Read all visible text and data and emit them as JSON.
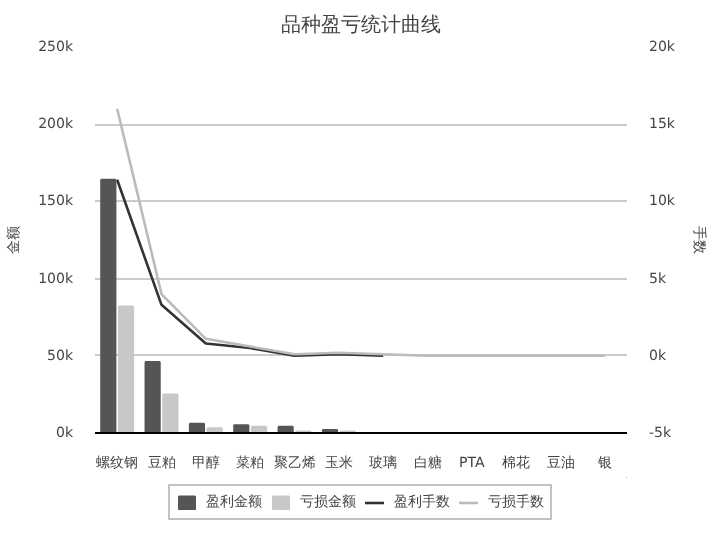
{
  "chart_data": {
    "type": "bar",
    "title": "品种盈亏统计曲线",
    "ylabel": "金额",
    "y2label": "手数",
    "categories": [
      "螺纹钢",
      "豆粕",
      "甲醇",
      "菜粕",
      "聚乙烯",
      "玉米",
      "玻璃",
      "白糖",
      "PTA",
      "棉花",
      "豆油",
      "银"
    ],
    "series": [
      {
        "name": "盈利金额",
        "color": "#555555",
        "values": [
          164000,
          46000,
          6000,
          5000,
          4000,
          2000,
          0,
          0,
          0,
          0,
          0,
          0
        ]
      },
      {
        "name": "亏损金额",
        "color": "#c8c8c8",
        "values": [
          82000,
          25000,
          3000,
          4000,
          1000,
          1000,
          0,
          0,
          0,
          0,
          0,
          0
        ]
      },
      {
        "name": "盈利手数",
        "type": "line",
        "axis": "y2",
        "color": "#333333",
        "values": [
          11400,
          3300,
          800,
          500,
          0,
          100,
          0,
          null,
          null,
          null,
          null,
          null
        ]
      },
      {
        "name": "亏损手数",
        "type": "line",
        "axis": "y2",
        "color": "#bbbbbb",
        "values": [
          16000,
          4000,
          1100,
          600,
          100,
          200,
          100,
          0,
          0,
          0,
          0,
          0
        ]
      }
    ],
    "ylim": [
      0,
      250000
    ],
    "yticks": [
      {
        "value": 0,
        "label": "0k"
      },
      {
        "value": 50000,
        "label": "50k"
      },
      {
        "value": 100000,
        "label": "100k"
      },
      {
        "value": 150000,
        "label": "150k"
      },
      {
        "value": 200000,
        "label": "200k"
      },
      {
        "value": 250000,
        "label": "250k"
      }
    ],
    "y2lim": [
      -5000,
      20000
    ],
    "y2ticks": [
      {
        "value": -5000,
        "label": "-5k"
      },
      {
        "value": 0,
        "label": "0k"
      },
      {
        "value": 5000,
        "label": "5k"
      },
      {
        "value": 10000,
        "label": "10k"
      },
      {
        "value": 15000,
        "label": "15k"
      },
      {
        "value": 20000,
        "label": "20k"
      }
    ],
    "grid": "y",
    "legend": "bottom"
  }
}
